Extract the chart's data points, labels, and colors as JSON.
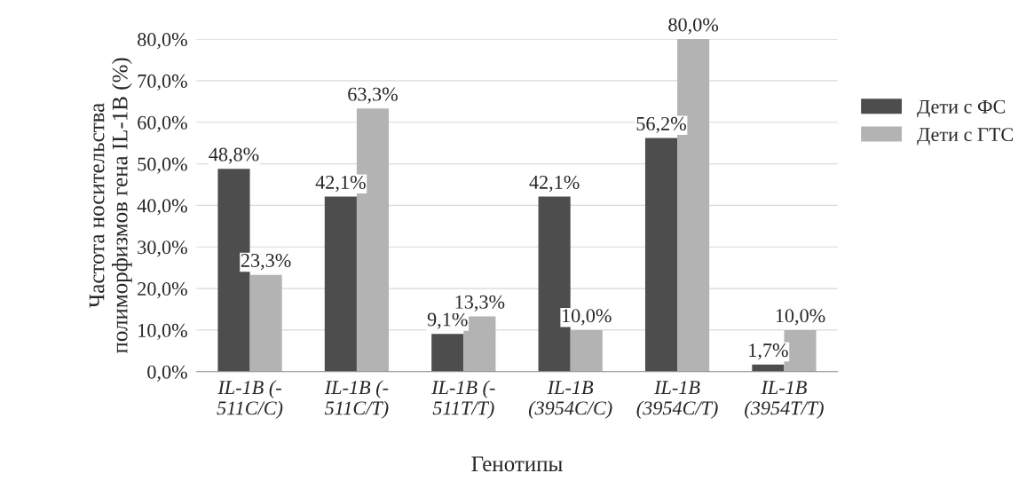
{
  "chart_data": {
    "type": "bar",
    "xlabel": "Генотипы",
    "ylabel": "Частота носительства\nполиморфизмов гена IL-1B (%)",
    "categories": [
      "IL-1B (-\n511C/C)",
      "IL-1B (-\n511C/T)",
      "IL-1B (-\n511T/T)",
      "IL-1B\n(3954C/C)",
      "IL-1B\n(3954C/T)",
      "IL-1B\n(3954T/T)"
    ],
    "series": [
      {
        "name": "Дети с ФС",
        "color": "#4d4d4d",
        "values": [
          48.8,
          42.1,
          9.1,
          42.1,
          56.2,
          1.7
        ],
        "value_labels": [
          "48,8%",
          "42,1%",
          "9,1%",
          "42,1%",
          "56,2%",
          "1,7%"
        ]
      },
      {
        "name": "Дети с ГТС",
        "color": "#b3b3b3",
        "values": [
          23.3,
          63.3,
          13.3,
          10.0,
          80.0,
          10.0
        ],
        "value_labels": [
          "23,3%",
          "63,3%",
          "13,3%",
          "10,0%",
          "80,0%",
          "10,0%"
        ]
      }
    ],
    "ylim": [
      0,
      80
    ],
    "yticks": [
      {
        "value": 0,
        "label": "0,0%"
      },
      {
        "value": 10,
        "label": "10,0%"
      },
      {
        "value": 20,
        "label": "20,0%"
      },
      {
        "value": 30,
        "label": "30,0%"
      },
      {
        "value": 40,
        "label": "40,0%"
      },
      {
        "value": 50,
        "label": "50,0%"
      },
      {
        "value": 60,
        "label": "60,0%"
      },
      {
        "value": 70,
        "label": "70,0%"
      },
      {
        "value": 80,
        "label": "80,0%"
      }
    ],
    "grid": "y",
    "legend": "right"
  }
}
